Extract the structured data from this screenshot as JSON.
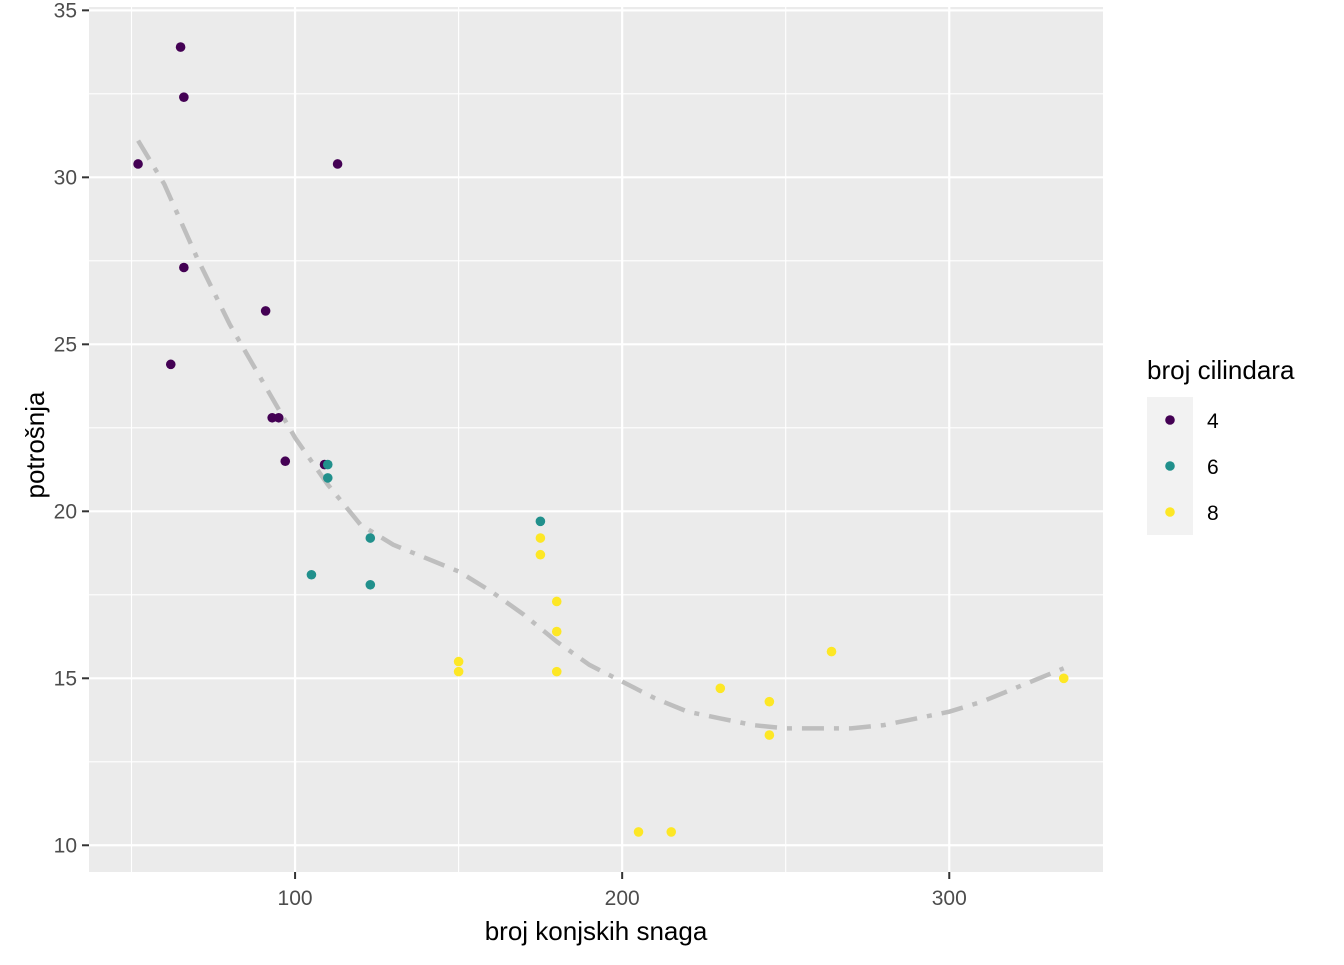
{
  "chart_data": {
    "type": "scatter",
    "xlabel": "broj konjskih snaga",
    "ylabel": "potrošnja",
    "xlim": [
      37,
      347
    ],
    "ylim": [
      9.2,
      35.1
    ],
    "x_ticks": [
      100,
      200,
      300
    ],
    "y_ticks": [
      10,
      15,
      20,
      25,
      30,
      35
    ],
    "grid": true,
    "legend": {
      "title": "broj cilindara",
      "position": "right",
      "entries": [
        {
          "label": "4",
          "color": "#440154"
        },
        {
          "label": "6",
          "color": "#21908C"
        },
        {
          "label": "8",
          "color": "#FDE725"
        }
      ]
    },
    "series": [
      {
        "name": "4",
        "color": "#440154",
        "points": [
          [
            52,
            30.4
          ],
          [
            65,
            33.9
          ],
          [
            66,
            32.4
          ],
          [
            66,
            27.3
          ],
          [
            62,
            24.4
          ],
          [
            91,
            26.0
          ],
          [
            93,
            22.8
          ],
          [
            95,
            22.8
          ],
          [
            97,
            21.5
          ],
          [
            109,
            21.4
          ],
          [
            113,
            30.4
          ]
        ]
      },
      {
        "name": "6",
        "color": "#21908C",
        "points": [
          [
            110,
            21.0
          ],
          [
            110,
            21.4
          ],
          [
            105,
            18.1
          ],
          [
            123,
            19.2
          ],
          [
            123,
            17.8
          ],
          [
            175,
            19.7
          ]
        ]
      },
      {
        "name": "8",
        "color": "#FDE725",
        "points": [
          [
            175,
            19.2
          ],
          [
            175,
            18.7
          ],
          [
            180,
            17.3
          ],
          [
            180,
            16.4
          ],
          [
            180,
            15.2
          ],
          [
            150,
            15.5
          ],
          [
            150,
            15.2
          ],
          [
            205,
            10.4
          ],
          [
            215,
            10.4
          ],
          [
            230,
            14.7
          ],
          [
            245,
            14.3
          ],
          [
            245,
            13.3
          ],
          [
            264,
            15.8
          ],
          [
            335,
            15.0
          ]
        ]
      }
    ],
    "trend_line": {
      "style": "dashed-dotted",
      "color": "#BEBEBE",
      "points": [
        [
          52,
          31.1
        ],
        [
          60,
          29.8
        ],
        [
          70,
          27.6
        ],
        [
          80,
          25.6
        ],
        [
          90,
          23.9
        ],
        [
          100,
          22.2
        ],
        [
          110,
          20.8
        ],
        [
          120,
          19.6
        ],
        [
          130,
          19.0
        ],
        [
          140,
          18.6
        ],
        [
          150,
          18.2
        ],
        [
          160,
          17.6
        ],
        [
          170,
          16.9
        ],
        [
          180,
          16.1
        ],
        [
          190,
          15.4
        ],
        [
          200,
          14.9
        ],
        [
          210,
          14.4
        ],
        [
          220,
          14.0
        ],
        [
          230,
          13.8
        ],
        [
          240,
          13.6
        ],
        [
          250,
          13.5
        ],
        [
          260,
          13.5
        ],
        [
          270,
          13.5
        ],
        [
          280,
          13.6
        ],
        [
          290,
          13.8
        ],
        [
          300,
          14.0
        ],
        [
          310,
          14.3
        ],
        [
          320,
          14.7
        ],
        [
          335,
          15.3
        ]
      ]
    }
  }
}
